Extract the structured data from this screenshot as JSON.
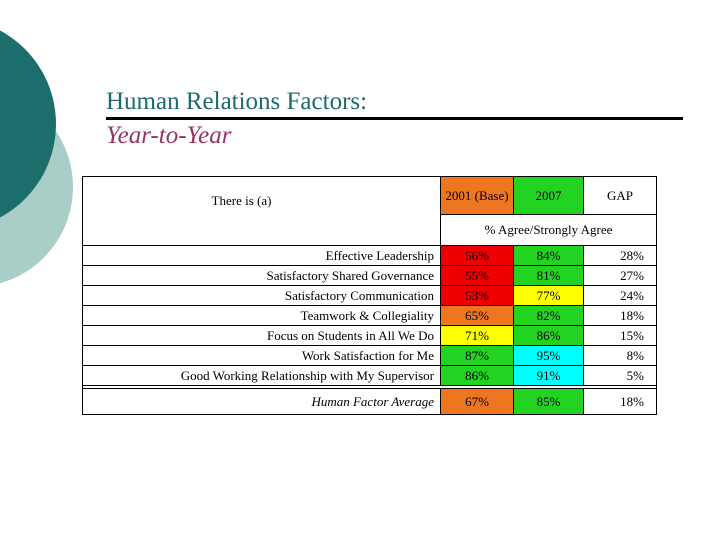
{
  "slide": {
    "title": "Human Relations Factors:",
    "subtitle": "Year-to-Year",
    "title_color": "#1E6969",
    "subtitle_color": "#993366",
    "underline_color": "#000000"
  },
  "decor": {
    "dark_circle_color": "#1C6E6D",
    "light_circle_color": "#A9CDC7"
  },
  "table": {
    "corner_label": "There is (a)",
    "columns": [
      {
        "label": "2001 (Base)",
        "bg": "#EE7621"
      },
      {
        "label": "2007",
        "bg": "#22D322"
      },
      {
        "label": "GAP",
        "bg": "#FFFFFF"
      }
    ],
    "subheader": "% Agree/Strongly Agree",
    "rows": [
      {
        "label": "Effective Leadership",
        "base": "56%",
        "base_bg": "#EE0000",
        "y2007": "84%",
        "y2007_bg": "#22D322",
        "gap": "28%"
      },
      {
        "label": "Satisfactory Shared Governance",
        "base": "55%",
        "base_bg": "#EE0000",
        "y2007": "81%",
        "y2007_bg": "#22D322",
        "gap": "27%"
      },
      {
        "label": "Satisfactory Communication",
        "base": "53%",
        "base_bg": "#EE0000",
        "y2007": "77%",
        "y2007_bg": "#FFFF00",
        "gap": "24%"
      },
      {
        "label": "Teamwork & Collegiality",
        "base": "65%",
        "base_bg": "#EE7621",
        "y2007": "82%",
        "y2007_bg": "#22D322",
        "gap": "18%"
      },
      {
        "label": "Focus on Students in All We Do",
        "base": "71%",
        "base_bg": "#FFFF00",
        "y2007": "86%",
        "y2007_bg": "#22D322",
        "gap": "15%"
      },
      {
        "label": "Work Satisfaction for Me",
        "base": "87%",
        "base_bg": "#22D322",
        "y2007": "95%",
        "y2007_bg": "#00FFFF",
        "gap": "8%"
      },
      {
        "label": "Good Working Relationship with My Supervisor",
        "base": "86%",
        "base_bg": "#22D322",
        "y2007": "91%",
        "y2007_bg": "#00FFFF",
        "gap": "5%"
      }
    ],
    "average_row": {
      "label": "Human Factor Average",
      "base": "67%",
      "base_bg": "#EE7621",
      "y2007": "85%",
      "y2007_bg": "#22D322",
      "gap": "18%"
    }
  }
}
